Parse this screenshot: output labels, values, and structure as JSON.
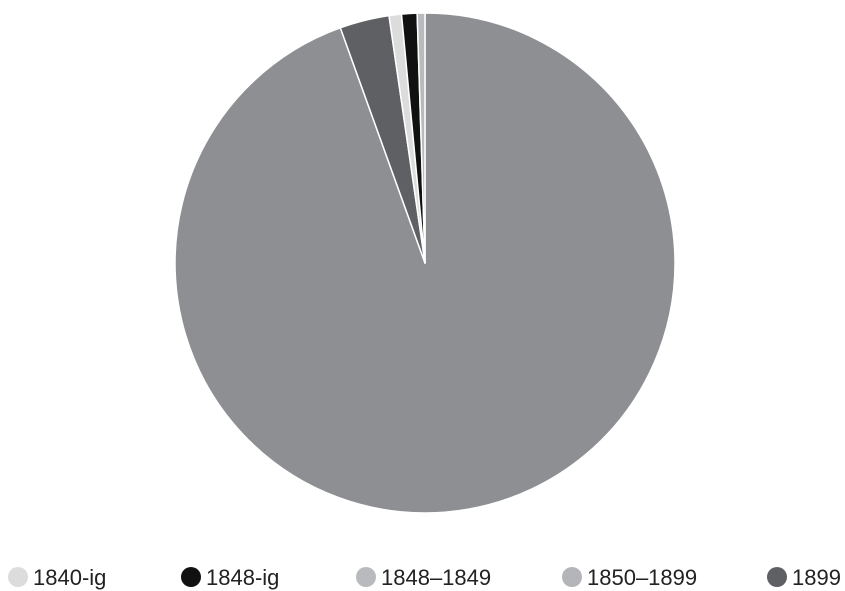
{
  "chart_data": {
    "type": "pie",
    "title": "",
    "legend_position": "bottom",
    "slices": [
      {
        "label": "1850–1899",
        "value": 94.5,
        "color": "#8e8f92"
      },
      {
        "label": "1899",
        "value": 3.2,
        "color": "#5f6063"
      },
      {
        "label": "1840-ig",
        "value": 0.8,
        "color": "#dcdcdc"
      },
      {
        "label": "1848-ig",
        "value": 1.0,
        "color": "#111111"
      },
      {
        "label": "1848–1849",
        "value": 0.5,
        "color": "#b9babd"
      }
    ],
    "legend": [
      {
        "label": "1840-ig",
        "color": "#dcdcdc"
      },
      {
        "label": "1848-ig",
        "color": "#111111"
      },
      {
        "label": "1848–1849",
        "color": "#b9babd"
      },
      {
        "label": "1850–1899",
        "color": "#b4b5b8"
      },
      {
        "label": "1899",
        "color": "#5f6063"
      }
    ]
  }
}
